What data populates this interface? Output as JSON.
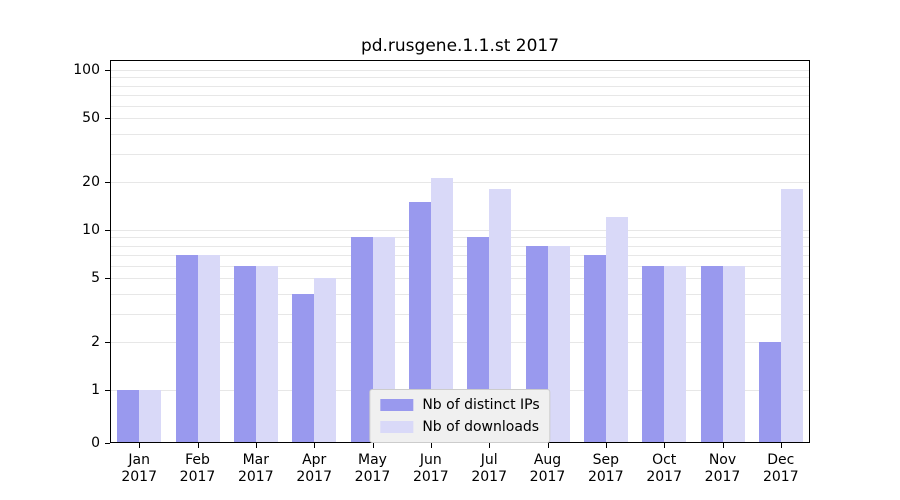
{
  "chart_data": {
    "type": "bar",
    "title": "pd.rusgene.1.1.st 2017",
    "categories": [
      "Jan",
      "Feb",
      "Mar",
      "Apr",
      "May",
      "Jun",
      "Jul",
      "Aug",
      "Sep",
      "Oct",
      "Nov",
      "Dec"
    ],
    "x_tick_year": "2017",
    "series": [
      {
        "name": "Nb of distinct IPs",
        "color": "#9999ee",
        "values": [
          1,
          7,
          6,
          4,
          9,
          15,
          9,
          8,
          7,
          6,
          6,
          2
        ]
      },
      {
        "name": "Nb of downloads",
        "color": "#d9d9f8",
        "values": [
          1,
          7,
          6,
          5,
          9,
          21,
          18,
          8,
          12,
          6,
          6,
          18
        ]
      }
    ],
    "yscale": "log-with-zero-baseline",
    "ylim": [
      0,
      100
    ],
    "yticks": [
      0,
      1,
      2,
      5,
      10,
      20,
      50,
      100
    ],
    "minor_gridlines": [
      1,
      2,
      3,
      4,
      5,
      6,
      7,
      8,
      9,
      10,
      20,
      30,
      40,
      50,
      60,
      70,
      80,
      90,
      100
    ],
    "grid": true,
    "legend_position": "lower center inside"
  },
  "legend": {
    "items": [
      {
        "label": "Nb of distinct IPs",
        "color": "#9999ee"
      },
      {
        "label": "Nb of downloads",
        "color": "#d9d9f8"
      }
    ]
  },
  "colors": {
    "grid": "#e7e7e7",
    "axis": "#000000",
    "bar_distinct_ips": "#9999ee",
    "bar_downloads": "#d9d9f8",
    "legend_bg": "#f0f0f0",
    "legend_border": "#cccccc",
    "background": "#ffffff"
  }
}
